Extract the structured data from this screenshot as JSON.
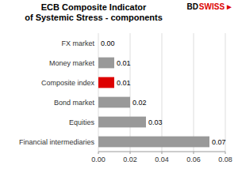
{
  "chart_data": {
    "type": "bar",
    "orientation": "horizontal",
    "title": "ECB Composite Indicator",
    "subtitle": "of Systemic Stress - components",
    "categories": [
      "Financial intermediaries",
      "Equities",
      "Bond market",
      "Composite index",
      "Money market",
      "FX market"
    ],
    "values": [
      0.07,
      0.03,
      0.02,
      0.01,
      0.01,
      0.0
    ],
    "value_labels": [
      "0.07",
      "0.03",
      "0.02",
      "0.01",
      "0.01",
      "0.00"
    ],
    "colors": [
      "#999999",
      "#999999",
      "#999999",
      "#dd0000",
      "#999999",
      "#999999"
    ],
    "xlim": [
      0,
      0.08
    ],
    "xticks": [
      {
        "value": 0,
        "label": "0.00"
      },
      0.02,
      0.04,
      0.06,
      0.08
    ],
    "grid": true,
    "data_labels": true,
    "annotations": [
      {
        "text": "BD",
        "color": "#000000"
      },
      {
        "text": "SWISS",
        "color": "#dd0000"
      },
      {
        "text": "►",
        "color": "#dd0000"
      }
    ]
  }
}
